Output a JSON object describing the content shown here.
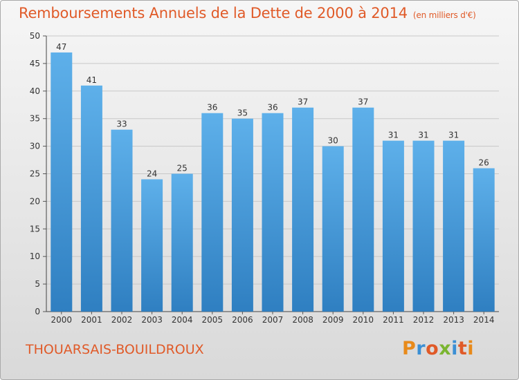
{
  "header": {
    "title": "Remboursements Annuels de la Dette de 2000 à 2014",
    "unit": "(en milliers d'€)"
  },
  "footer": {
    "commune": "THOUARSAIS-BOUILDROUX",
    "logo": "Proxiti"
  },
  "colors": {
    "title": "#e05a28",
    "bar_top": "#5eb0ea",
    "bar_bottom": "#2f7fc1",
    "axis": "#333333"
  },
  "chart_data": {
    "type": "bar",
    "categories": [
      "2000",
      "2001",
      "2002",
      "2003",
      "2004",
      "2005",
      "2006",
      "2007",
      "2008",
      "2009",
      "2010",
      "2011",
      "2012",
      "2013",
      "2014"
    ],
    "values": [
      47,
      41,
      33,
      24,
      25,
      36,
      35,
      36,
      37,
      30,
      37,
      31,
      31,
      31,
      26
    ],
    "ylim": [
      0,
      50
    ],
    "yticks": [
      0,
      5,
      10,
      15,
      20,
      25,
      30,
      35,
      40,
      45,
      50
    ],
    "grid": true,
    "data_labels": true
  }
}
